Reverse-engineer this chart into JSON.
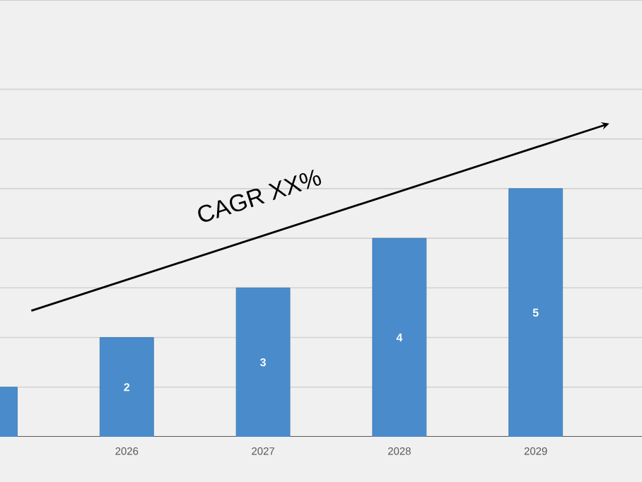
{
  "chart_data": {
    "type": "bar",
    "categories": [
      null,
      "2026",
      "2027",
      "2028",
      "2029"
    ],
    "values": [
      1,
      2,
      3,
      4,
      5
    ],
    "value_labels": [
      null,
      "2",
      "3",
      "4",
      "5"
    ],
    "color": "#4a8ccb",
    "ylim": [
      0,
      8.8
    ],
    "yticks": [
      {
        "value": 1,
        "label": null
      },
      {
        "value": 2,
        "label": null
      },
      {
        "value": 3,
        "label": null
      },
      {
        "value": 4,
        "label": null
      },
      {
        "value": 5,
        "label": null
      },
      {
        "value": 6,
        "label": null
      },
      {
        "value": 7,
        "label": null
      }
    ],
    "grid": "y",
    "tick_labels": "x",
    "annotations": [
      "CAGR XX%"
    ]
  }
}
